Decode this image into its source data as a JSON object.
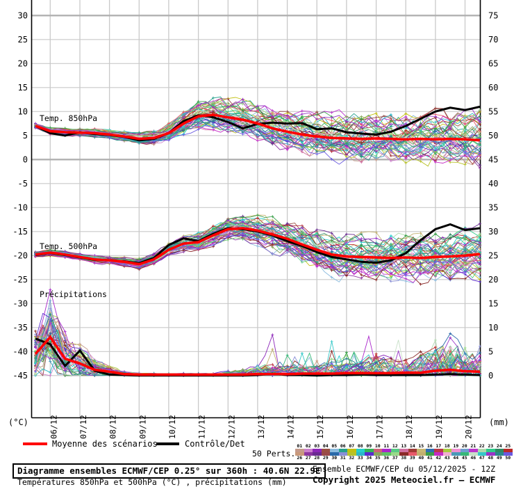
{
  "accent_colors": {
    "mean": "#ff0000",
    "control": "#000000",
    "grid": "#c9c9c9",
    "grid_major": "#b0b0b0",
    "axis": "#000000"
  },
  "axis": {
    "left_unit": "(°C)",
    "right_unit": "(mm)",
    "left_ticks": [
      "30",
      "25",
      "20",
      "15",
      "10",
      "5",
      "0",
      "-5",
      "-10",
      "-15",
      "-20",
      "-25",
      "-30",
      "-35",
      "-40",
      "-45"
    ],
    "right_ticks": [
      "75",
      "70",
      "65",
      "60",
      "55",
      "50",
      "45",
      "40",
      "35",
      "30",
      "25",
      "20",
      "15",
      "10",
      "5",
      "0"
    ]
  },
  "chart_data": {
    "type": "line",
    "title": "Diagramme ensembles ECMWF/CEP 0.25° sur 360h : 40.6N 22.9E",
    "subtitle": "Températures 850hPa et 500hPa (°C) , précipitations (mm)",
    "x_dates": [
      "06/12",
      "07/12",
      "08/12",
      "09/12",
      "10/12",
      "11/12",
      "12/12",
      "13/12",
      "14/12",
      "15/12",
      "16/12",
      "17/12",
      "18/12",
      "19/12",
      "20/12"
    ],
    "x_start": "05/12 12Z",
    "x_step_hours": 12,
    "xlabel": "",
    "ylabel_left": "(°C)",
    "ylabel_right": "(mm)",
    "ylim_left": [
      -45,
      30
    ],
    "ylim_right": [
      0,
      75
    ],
    "grid": true,
    "legend_position": "bottom",
    "panels": [
      {
        "label": "Temp. 850hPa",
        "unit": "°C",
        "mean": [
          7.0,
          5.9,
          5.7,
          5.6,
          5.5,
          5.2,
          4.8,
          4.3,
          4.5,
          5.5,
          7.5,
          9.0,
          9.3,
          8.8,
          8.3,
          7.5,
          6.5,
          5.8,
          5.2,
          4.8,
          4.5,
          4.4,
          4.3,
          4.4,
          4.3,
          4.2,
          4.3,
          4.2,
          4.3,
          4.2,
          4.0
        ],
        "control": [
          7.0,
          5.5,
          5.0,
          5.7,
          5.3,
          5.1,
          4.7,
          4.0,
          4.3,
          5.5,
          8.0,
          9.2,
          8.8,
          7.8,
          6.5,
          7.4,
          7.7,
          7.5,
          7.6,
          6.3,
          6.5,
          5.7,
          5.4,
          5.2,
          5.8,
          7.0,
          8.5,
          10.0,
          10.8,
          10.3,
          11.0
        ],
        "spread": [
          0.4,
          0.6,
          0.6,
          0.6,
          0.7,
          0.7,
          0.8,
          0.9,
          1.1,
          1.4,
          1.8,
          2.2,
          2.5,
          2.7,
          2.9,
          3.1,
          3.2,
          3.3,
          3.4,
          3.5,
          3.6,
          3.6,
          3.7,
          3.7,
          3.8,
          3.8,
          3.9,
          4.0,
          4.1,
          4.3,
          4.6
        ]
      },
      {
        "label": "Temp. 500hPa",
        "unit": "°C",
        "mean": [
          -19.8,
          -19.4,
          -19.8,
          -20.3,
          -20.8,
          -21.0,
          -21.3,
          -21.8,
          -20.8,
          -18.8,
          -17.5,
          -17.2,
          -15.8,
          -14.5,
          -14.3,
          -14.8,
          -15.6,
          -16.5,
          -17.7,
          -18.8,
          -19.8,
          -20.2,
          -20.3,
          -20.4,
          -20.5,
          -20.4,
          -20.5,
          -20.3,
          -20.2,
          -20.0,
          -19.7
        ],
        "control": [
          -19.9,
          -19.5,
          -19.9,
          -20.4,
          -20.9,
          -21.0,
          -21.2,
          -21.6,
          -20.5,
          -17.8,
          -16.4,
          -17.0,
          -15.5,
          -14.3,
          -14.5,
          -15.0,
          -15.8,
          -17.0,
          -18.0,
          -19.3,
          -20.3,
          -20.8,
          -21.3,
          -21.5,
          -21.0,
          -19.5,
          -16.8,
          -14.5,
          -13.5,
          -14.7,
          -14.3
        ],
        "spread": [
          0.4,
          0.5,
          0.5,
          0.5,
          0.6,
          0.6,
          0.7,
          0.8,
          0.9,
          1.0,
          1.1,
          1.3,
          1.5,
          1.7,
          1.9,
          2.2,
          2.5,
          2.7,
          2.9,
          3.1,
          3.3,
          3.4,
          3.5,
          3.6,
          3.6,
          3.7,
          3.8,
          3.9,
          4.0,
          4.1,
          4.3
        ]
      },
      {
        "label": "Précipitations",
        "unit": "mm",
        "mean": [
          4.5,
          8.0,
          3.5,
          2.5,
          1.2,
          0.8,
          0.3,
          0.2,
          0.2,
          0.2,
          0.2,
          0.2,
          0.2,
          0.2,
          0.2,
          0.3,
          0.3,
          0.3,
          0.4,
          0.4,
          0.4,
          0.5,
          0.5,
          0.5,
          0.5,
          0.6,
          0.6,
          1.0,
          1.2,
          0.9,
          0.8
        ],
        "control": [
          7.7,
          6.5,
          2.0,
          5.2,
          1.0,
          0.2,
          0.1,
          0.0,
          0.0,
          0.0,
          0.0,
          0.0,
          0.0,
          0.0,
          0.0,
          0.1,
          0.4,
          0.1,
          0.1,
          0.0,
          0.1,
          0.1,
          0.2,
          0.1,
          0.1,
          0.1,
          0.1,
          0.2,
          0.3,
          0.2,
          0.1
        ],
        "spread": [
          2.5,
          3.5,
          2.0,
          1.5,
          0.8,
          0.5,
          0.2,
          0.1,
          0.1,
          0.1,
          0.1,
          0.1,
          0.1,
          0.3,
          0.5,
          0.8,
          0.8,
          0.7,
          0.6,
          0.8,
          1.0,
          1.2,
          1.0,
          1.5,
          1.2,
          1.0,
          1.5,
          2.0,
          2.5,
          2.0,
          1.5
        ]
      }
    ]
  },
  "legend": {
    "mean": {
      "label": "Moyenne des scénarios",
      "color": "#ff0000"
    },
    "control": {
      "label": "Contrôle/Det",
      "color": "#000000"
    },
    "perts": {
      "label": "50 Perts.",
      "labels": [
        "01",
        "02",
        "03",
        "04",
        "05",
        "06",
        "07",
        "08",
        "09",
        "10",
        "11",
        "12",
        "13",
        "14",
        "15",
        "16",
        "17",
        "18",
        "19",
        "20",
        "21",
        "22",
        "23",
        "24",
        "25",
        "26",
        "27",
        "28",
        "29",
        "30",
        "31",
        "32",
        "33",
        "34",
        "35",
        "36",
        "37",
        "38",
        "39",
        "40",
        "41",
        "42",
        "43",
        "44",
        "45",
        "46",
        "47",
        "48",
        "49",
        "50"
      ],
      "colors": [
        "#c49a8a",
        "#cc7fcc",
        "#8c26b8",
        "#9a4f42",
        "#8cbcdf",
        "#27a08c",
        "#c3c013",
        "#25d0cd",
        "#33b655",
        "#cf6277",
        "#aa26cc",
        "#57cc84",
        "#d06fa0",
        "#a03a35",
        "#c9b873",
        "#2f6fb4",
        "#bb3947",
        "#a8cc3d",
        "#ef8fd2",
        "#6f9fd0",
        "#bb35cc",
        "#aed9ac",
        "#2fcc8a",
        "#2f8a63",
        "#bb2a28",
        "#c9997a",
        "#8c35a0",
        "#6a2a90",
        "#9a4a49",
        "#2a6aaa",
        "#8a8fd6",
        "#b8c229",
        "#2ab8c9",
        "#5c2ad0",
        "#8aa85c",
        "#5ec464",
        "#9ad98a",
        "#8a2a28",
        "#e85a6a",
        "#c2b070",
        "#3aa04a",
        "#c42ac4",
        "#f2aed2",
        "#4a9ab8",
        "#38b878",
        "#c8e0c8",
        "#35c8c8",
        "#9a35c8",
        "#2a8a8a",
        "#6a5ae0"
      ]
    }
  },
  "footer": {
    "left_line1": "Diagramme ensembles ECMWF/CEP 0.25° sur 360h : 40.6N 22.9E",
    "left_line2": "Températures 850hPa et 500hPa (°C) , précipitations (mm)",
    "right_line1": "Ensemble ECMWF/CEP du 05/12/2025 - 12Z",
    "right_line2": "Copyright 2025 Meteociel.fr – ECMWF"
  }
}
